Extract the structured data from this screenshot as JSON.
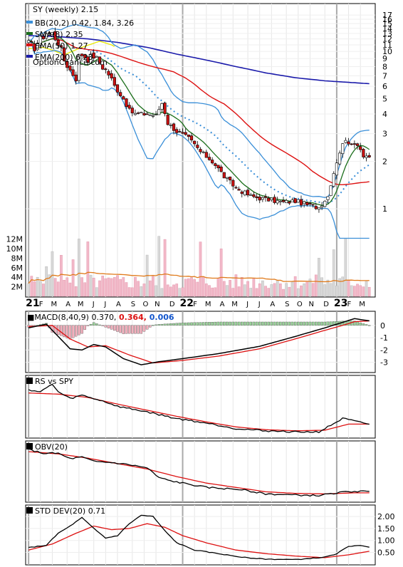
{
  "chart_data": [
    {
      "type": "candlestick",
      "title": "SY (weekly) 2.15",
      "watermark": "OptionChance.com",
      "legend_placement": "top-left",
      "legend": [
        {
          "label": "BB(20,2) 0.42, 1.84, 3.26",
          "color": "#3a8fd8"
        },
        {
          "label": "SMA(8) 2.35",
          "color": "#1a6e1a"
        },
        {
          "label": "SMA(50) 1.27",
          "color": "#dd1111"
        },
        {
          "label": "EMA(200) 6.23",
          "color": "#1a1aaa"
        }
      ],
      "x_labels": [
        {
          "label": "21",
          "x": 0,
          "bold": true
        },
        {
          "label": "F",
          "x": 4
        },
        {
          "label": "M",
          "x": 8
        },
        {
          "label": "A",
          "x": 13
        },
        {
          "label": "M",
          "x": 17
        },
        {
          "label": "J",
          "x": 22
        },
        {
          "label": "J",
          "x": 26
        },
        {
          "label": "A",
          "x": 30
        },
        {
          "label": "S",
          "x": 35
        },
        {
          "label": "O",
          "x": 39
        },
        {
          "label": "N",
          "x": 43
        },
        {
          "label": "D",
          "x": 48
        },
        {
          "label": "22",
          "x": 52,
          "bold": true
        },
        {
          "label": "F",
          "x": 56
        },
        {
          "label": "M",
          "x": 60
        },
        {
          "label": "A",
          "x": 65
        },
        {
          "label": "M",
          "x": 69
        },
        {
          "label": "J",
          "x": 74
        },
        {
          "label": "J",
          "x": 78
        },
        {
          "label": "A",
          "x": 82
        },
        {
          "label": "S",
          "x": 87
        },
        {
          "label": "O",
          "x": 91
        },
        {
          "label": "N",
          "x": 95
        },
        {
          "label": "D",
          "x": 100
        },
        {
          "label": "23",
          "x": 104,
          "bold": true
        },
        {
          "label": "F",
          "x": 108
        },
        {
          "label": "M",
          "x": 112
        }
      ],
      "year_markers": [
        52,
        104
      ],
      "x_range": [
        -1,
        117
      ],
      "price_ticks": [
        1,
        2,
        3,
        4,
        5,
        6,
        7,
        8,
        9,
        10,
        11,
        12,
        13,
        14,
        15,
        16,
        17
      ],
      "price_scale": "log",
      "price_range": [
        0.62,
        19.5
      ],
      "volume_ticks": [
        {
          "v": 2,
          "label": "2M"
        },
        {
          "v": 4,
          "label": "4M"
        },
        {
          "v": 6,
          "label": "6M"
        },
        {
          "v": 8,
          "label": "8M"
        },
        {
          "v": 10,
          "label": "10M"
        },
        {
          "v": 12,
          "label": "12M"
        }
      ],
      "volume_range": [
        0,
        13
      ],
      "volume_ma_color": "#e07a1a",
      "series_colors": {
        "bb": "#3a8fd8",
        "bb_mid": "#3a8fd8",
        "sma8": "#1a6e1a",
        "sma50": "#dd1111",
        "ema200": "#1a1aaa",
        "yellow": "#e8e800",
        "up": "#ffffff",
        "down": "#cc1111",
        "vol_up": "#d8d8d8",
        "vol_down": "#f2b8c8"
      }
    },
    {
      "type": "line",
      "title": "MACD(8,40,9) 0.370,",
      "values_text": [
        {
          "text": "0.364,",
          "color": "#dd1111"
        },
        {
          "text": "0.006",
          "color": "#1155cc"
        }
      ],
      "y_ticks": [
        0,
        -1,
        -2,
        -3
      ],
      "y_range": [
        -3.6,
        0.8
      ]
    },
    {
      "type": "line",
      "title": "RS vs SPY",
      "y_ticks": [],
      "y_range": [
        0,
        1
      ]
    },
    {
      "type": "line",
      "title": "OBV(20)",
      "y_ticks": [],
      "y_range": [
        0,
        1
      ]
    },
    {
      "type": "line",
      "title": "STD DEV(20) 0.71",
      "y_ticks": [
        {
          "v": 2.0,
          "label": "2.00"
        },
        {
          "v": 1.5,
          "label": "1.50"
        },
        {
          "v": 1.0,
          "label": "1.00"
        },
        {
          "v": 0.5,
          "label": "0.50"
        }
      ],
      "y_range": [
        0.1,
        2.3
      ]
    }
  ]
}
